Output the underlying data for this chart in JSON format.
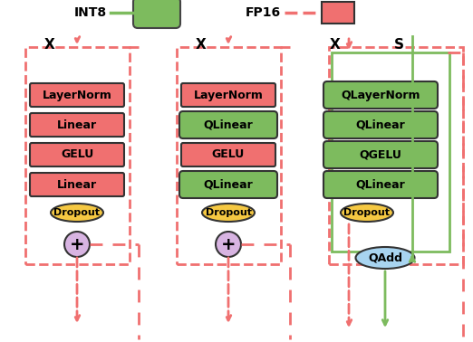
{
  "background": "#ffffff",
  "int8_color": "#7dbb5e",
  "fp16_color": "#f07070",
  "dropout_color": "#f5c842",
  "add_color": "#d8b4e2",
  "qadd_color": "#a8d4f0",
  "red_box_color": "#f07070",
  "green_box_color": "#7dbb5e",
  "legend_int8_text": "INT8",
  "legend_fp16_text": "FP16",
  "col1_labels": [
    "LayerNorm",
    "Linear",
    "GELU",
    "Linear"
  ],
  "col1_colors": [
    "red",
    "red",
    "red",
    "red"
  ],
  "col2_labels": [
    "LayerNorm",
    "QLinear",
    "GELU",
    "QLinear"
  ],
  "col2_colors": [
    "red",
    "green",
    "red",
    "green"
  ],
  "col3_labels": [
    "QLayerNorm",
    "QLinear",
    "QGELU",
    "QLinear"
  ],
  "col3_colors": [
    "green",
    "green",
    "green",
    "green"
  ]
}
